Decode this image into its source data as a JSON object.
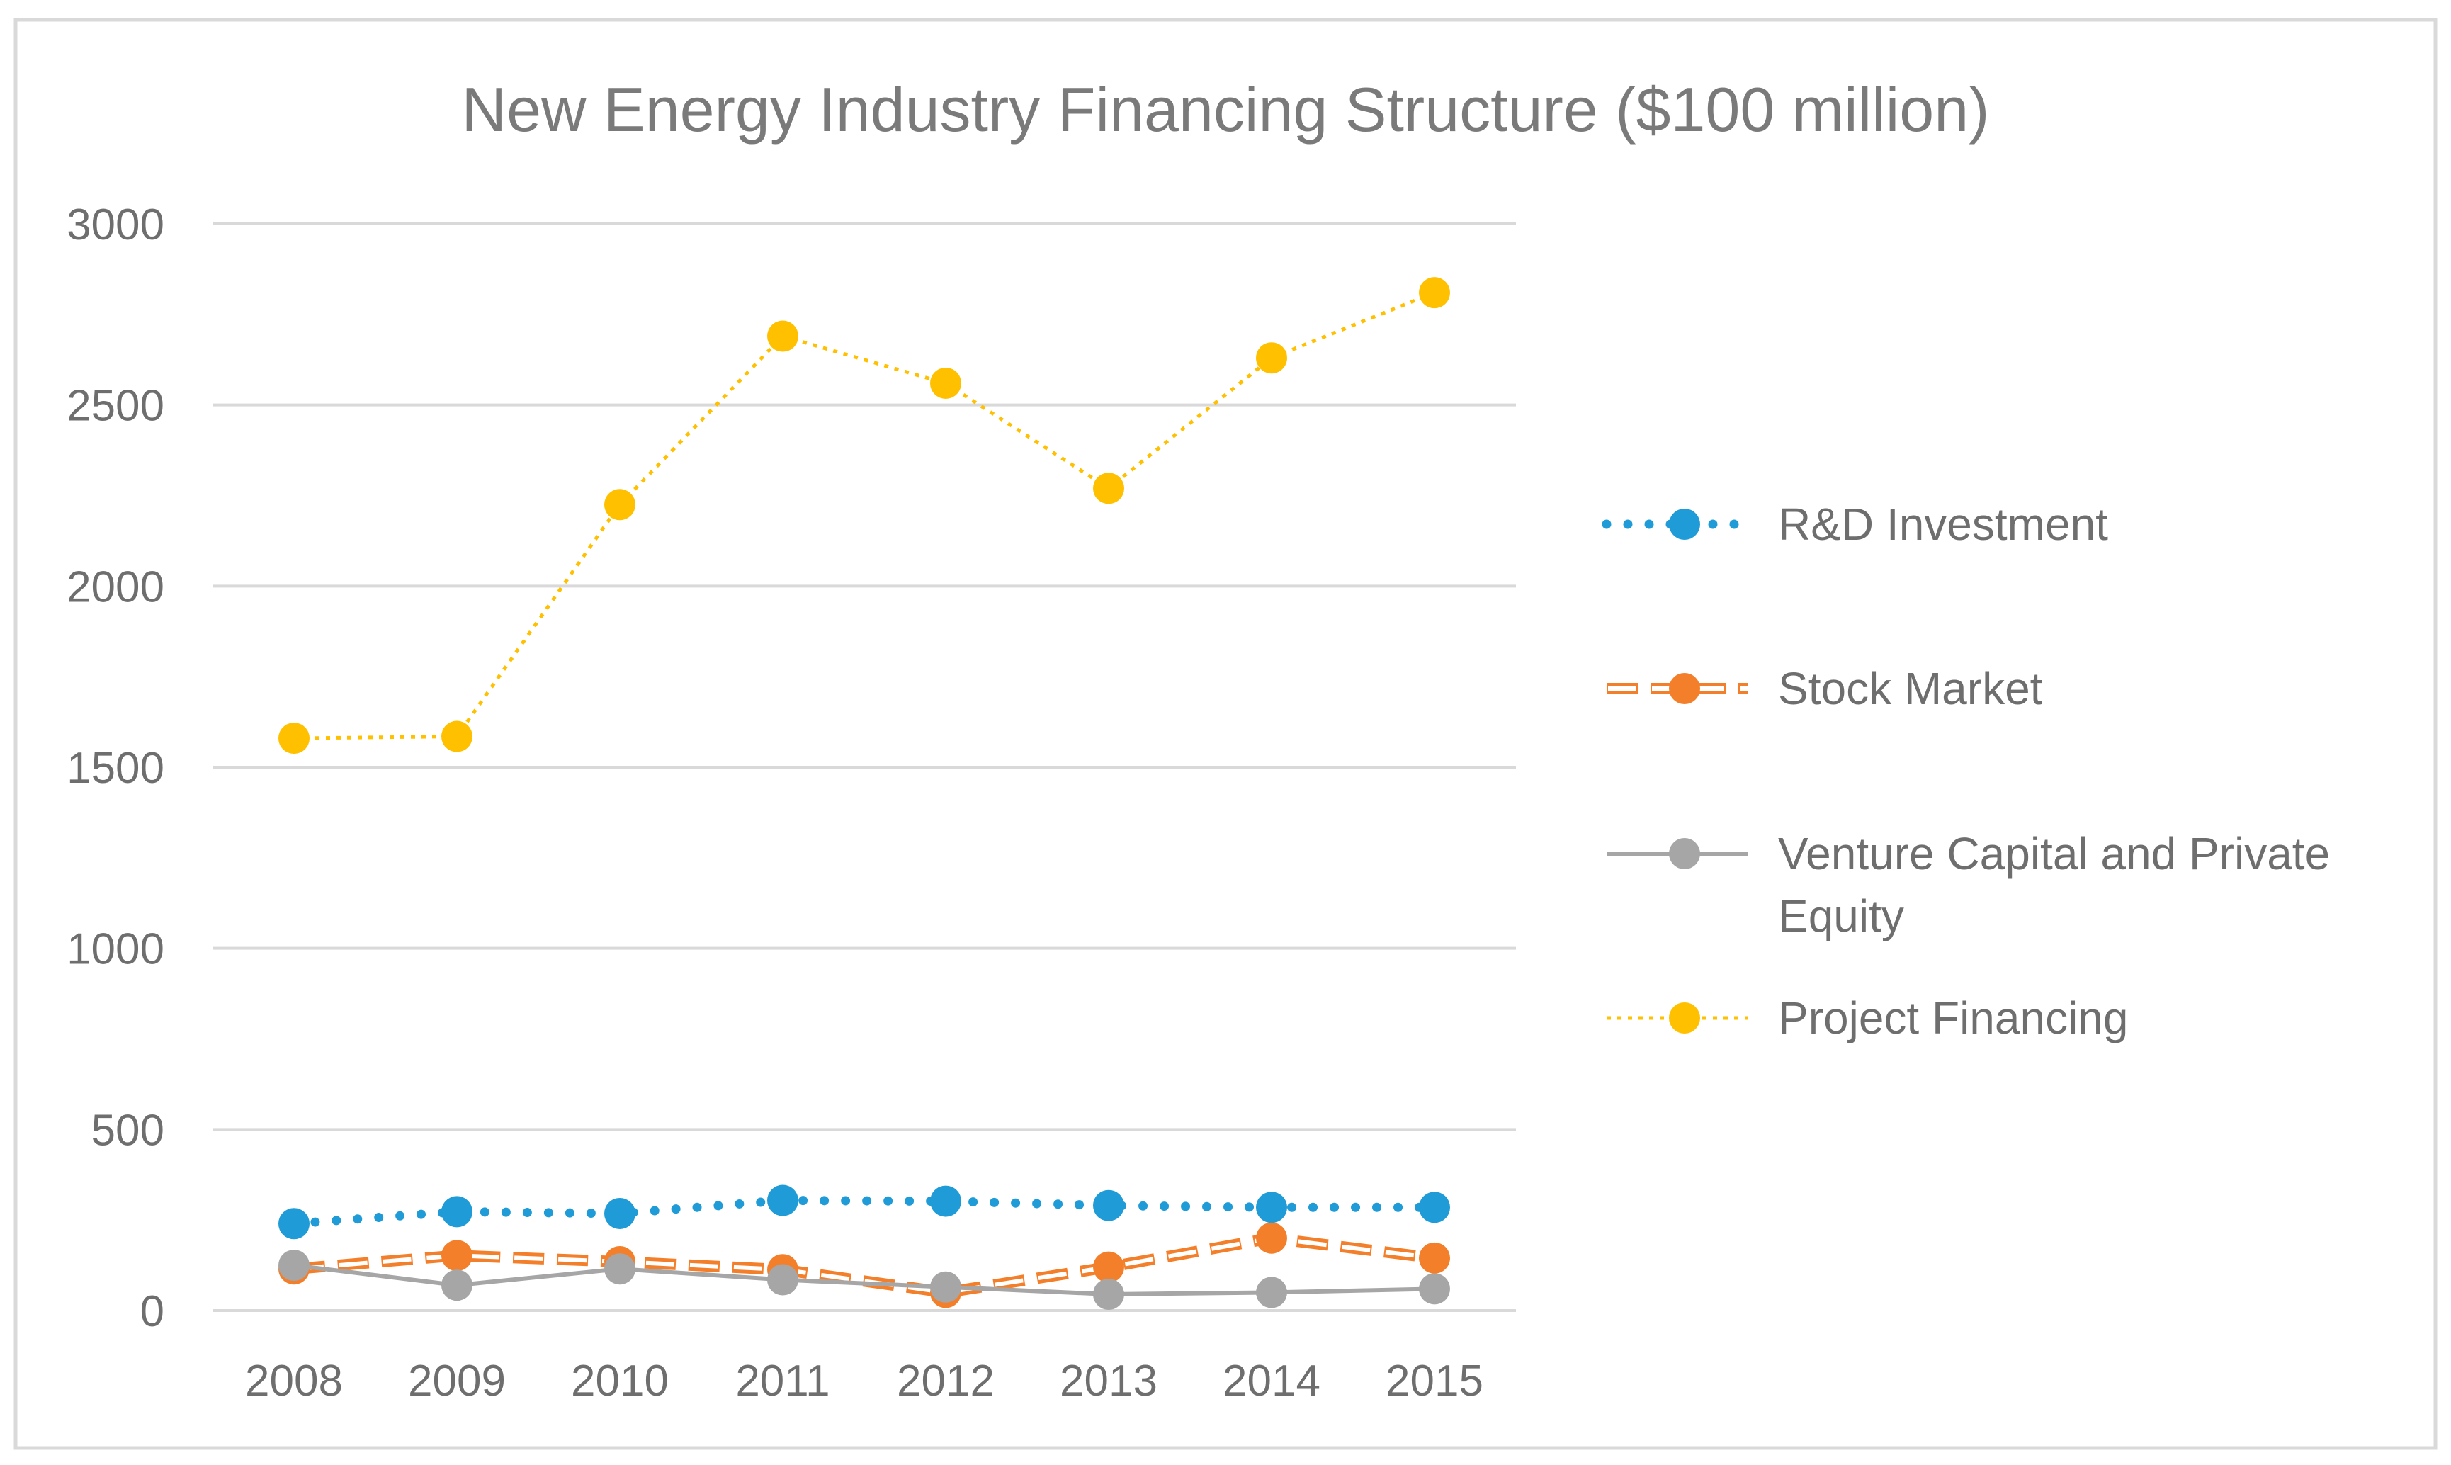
{
  "chart_data": {
    "type": "line",
    "title": "New Energy Industry Financing Structure ($100 million)",
    "xlabel": "",
    "ylabel": "",
    "categories": [
      "2008",
      "2009",
      "2010",
      "2011",
      "2012",
      "2013",
      "2014",
      "2015"
    ],
    "ylim": [
      0,
      3000
    ],
    "yticks": [
      0,
      500,
      1000,
      1500,
      2000,
      2500,
      3000
    ],
    "grid": true,
    "legend_position": "right",
    "series": [
      {
        "name": "R&D Investment",
        "color": "#1f9bd7",
        "dash": "dotted-round",
        "values": [
          240,
          273,
          268,
          304,
          302,
          290,
          285,
          285
        ]
      },
      {
        "name": "Stock Market",
        "color": "#f47f2a",
        "dash": "dashed",
        "values": [
          115,
          152,
          135,
          113,
          50,
          120,
          200,
          145
        ]
      },
      {
        "name": "Venture Capital and Private Equity",
        "color": "#a6a6a6",
        "dash": "solid",
        "values": [
          125,
          70,
          115,
          85,
          65,
          45,
          50,
          60
        ]
      },
      {
        "name": "Project Financing",
        "color": "#ffc000",
        "dash": "dotted-fine",
        "values": [
          1580,
          1585,
          2225,
          2690,
          2560,
          2270,
          2630,
          2810
        ]
      }
    ],
    "legend": [
      {
        "lines": [
          "R&D Investment"
        ]
      },
      {
        "lines": [
          "Stock Market"
        ]
      },
      {
        "lines": [
          "Venture Capital and Private",
          "Equity"
        ]
      },
      {
        "lines": [
          "Project Financing"
        ]
      }
    ]
  }
}
